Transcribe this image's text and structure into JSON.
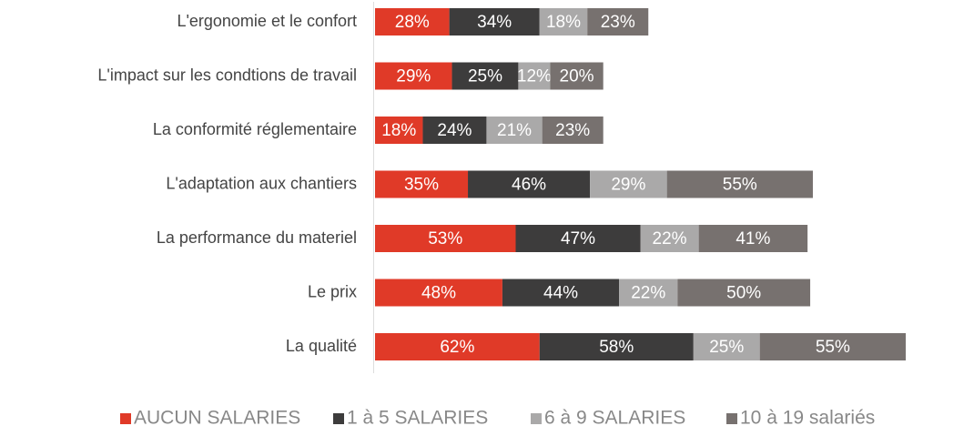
{
  "chart_data": {
    "type": "stacked-bar-horizontal",
    "categories": [
      "L'ergonomie et le confort",
      "L'impact sur les condtions de travail",
      "La conformité réglementaire",
      "L'adaptation aux chantiers",
      "La performance du materiel",
      "Le prix",
      "La qualité"
    ],
    "series": [
      {
        "name": "AUCUN SALARIES",
        "color": "#e03a28",
        "values": [
          28,
          29,
          18,
          35,
          53,
          48,
          62
        ],
        "value_labels": [
          "28%",
          "29%",
          "18%",
          "35%",
          "53%",
          "48%",
          "62%"
        ]
      },
      {
        "name": "1 à 5 SALARIES",
        "color": "#3d3c3c",
        "values": [
          34,
          25,
          24,
          46,
          47,
          44,
          58
        ],
        "value_labels": [
          "34%",
          "25%",
          "24%",
          "46%",
          "47%",
          "44%",
          "58%"
        ]
      },
      {
        "name": "6 à 9 SALARIES",
        "color": "#aaa9a9",
        "values": [
          18,
          12,
          21,
          29,
          22,
          22,
          25
        ],
        "value_labels": [
          "18%",
          "12%",
          "21%",
          "29%",
          "22%",
          "22%",
          "25%"
        ]
      },
      {
        "name": "10 à 19 salariés",
        "color": "#77716f",
        "values": [
          23,
          20,
          23,
          55,
          41,
          50,
          55
        ],
        "value_labels": [
          "23%",
          "20%",
          "23%",
          "55%",
          "41%",
          "50%",
          "55%"
        ]
      }
    ],
    "xlim": [
      0,
      200
    ]
  }
}
